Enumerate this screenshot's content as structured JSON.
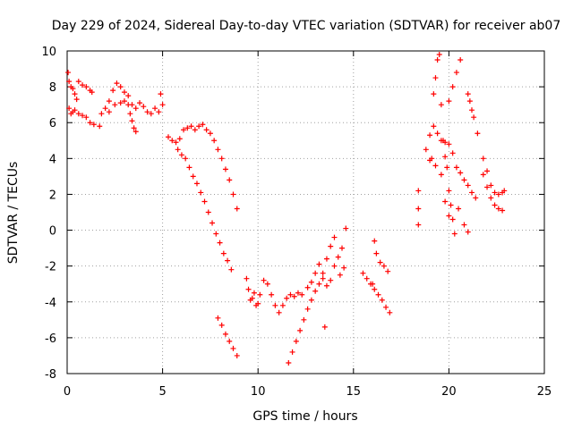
{
  "chart_data": {
    "type": "scatter",
    "title": "Day 229 of 2024, Sidereal Day-to-day VTEC variation (SDTVAR) for receiver ab07",
    "xlabel": "GPS time / hours",
    "ylabel": "SDTVAR / TECUs",
    "xlim": [
      0,
      25
    ],
    "ylim": [
      -8,
      10
    ],
    "xticks": [
      0,
      5,
      10,
      15,
      20,
      25
    ],
    "yticks": [
      -8,
      -6,
      -4,
      -2,
      0,
      2,
      4,
      6,
      8,
      10
    ],
    "grid": true,
    "marker": "+",
    "color": "#ff0000",
    "series": [
      {
        "points": [
          [
            0.05,
            8.8
          ],
          [
            0.1,
            8.3
          ],
          [
            0.2,
            8.0
          ],
          [
            0.3,
            7.9
          ],
          [
            0.4,
            7.6
          ],
          [
            0.5,
            7.3
          ],
          [
            0.1,
            6.8
          ],
          [
            0.2,
            6.5
          ],
          [
            0.3,
            6.6
          ],
          [
            0.4,
            6.7
          ],
          [
            0.6,
            6.5
          ],
          [
            0.8,
            6.4
          ],
          [
            1.0,
            6.3
          ],
          [
            1.2,
            6.0
          ],
          [
            1.4,
            5.9
          ],
          [
            1.7,
            5.8
          ],
          [
            0.6,
            8.3
          ],
          [
            0.8,
            8.1
          ],
          [
            1.0,
            8.0
          ],
          [
            1.2,
            7.8
          ],
          [
            1.3,
            7.7
          ],
          [
            1.8,
            6.5
          ],
          [
            2.0,
            6.8
          ],
          [
            2.2,
            7.2
          ],
          [
            2.4,
            7.8
          ],
          [
            2.6,
            8.2
          ],
          [
            2.8,
            8.0
          ],
          [
            3.0,
            7.7
          ],
          [
            3.2,
            7.0
          ],
          [
            3.3,
            6.5
          ],
          [
            3.4,
            6.1
          ],
          [
            3.5,
            5.7
          ],
          [
            3.6,
            5.5
          ],
          [
            2.2,
            6.6
          ],
          [
            2.5,
            7.0
          ],
          [
            2.8,
            7.1
          ],
          [
            3.0,
            7.2
          ],
          [
            3.2,
            7.5
          ],
          [
            3.4,
            7.0
          ],
          [
            3.6,
            6.8
          ],
          [
            3.8,
            7.1
          ],
          [
            4.0,
            6.9
          ],
          [
            4.2,
            6.6
          ],
          [
            4.4,
            6.5
          ],
          [
            4.6,
            6.8
          ],
          [
            4.8,
            6.6
          ],
          [
            4.9,
            7.6
          ],
          [
            5.0,
            7.0
          ],
          [
            5.3,
            5.2
          ],
          [
            5.5,
            5.0
          ],
          [
            5.7,
            4.9
          ],
          [
            5.9,
            5.1
          ],
          [
            6.1,
            5.6
          ],
          [
            6.3,
            5.7
          ],
          [
            6.5,
            5.8
          ],
          [
            6.7,
            5.6
          ],
          [
            6.9,
            5.8
          ],
          [
            7.1,
            5.9
          ],
          [
            7.3,
            5.6
          ],
          [
            7.5,
            5.4
          ],
          [
            7.7,
            5.0
          ],
          [
            7.9,
            4.5
          ],
          [
            8.1,
            4.0
          ],
          [
            8.3,
            3.4
          ],
          [
            8.5,
            2.8
          ],
          [
            8.7,
            2.0
          ],
          [
            8.9,
            1.2
          ],
          [
            5.8,
            4.5
          ],
          [
            6.0,
            4.2
          ],
          [
            6.2,
            4.0
          ],
          [
            6.4,
            3.5
          ],
          [
            6.6,
            3.0
          ],
          [
            6.8,
            2.6
          ],
          [
            7.0,
            2.1
          ],
          [
            7.2,
            1.6
          ],
          [
            7.4,
            1.0
          ],
          [
            7.6,
            0.4
          ],
          [
            7.8,
            -0.2
          ],
          [
            8.0,
            -0.7
          ],
          [
            8.2,
            -1.3
          ],
          [
            8.4,
            -1.7
          ],
          [
            8.6,
            -2.2
          ],
          [
            7.9,
            -4.9
          ],
          [
            8.1,
            -5.3
          ],
          [
            8.3,
            -5.8
          ],
          [
            8.5,
            -6.2
          ],
          [
            8.7,
            -6.6
          ],
          [
            8.9,
            -7.0
          ],
          [
            9.4,
            -2.7
          ],
          [
            9.5,
            -3.3
          ],
          [
            9.7,
            -3.8
          ],
          [
            9.9,
            -4.2
          ],
          [
            10.1,
            -3.6
          ],
          [
            10.3,
            -2.8
          ],
          [
            10.5,
            -3.0
          ],
          [
            10.7,
            -3.6
          ],
          [
            10.9,
            -4.2
          ],
          [
            11.1,
            -4.6
          ],
          [
            11.3,
            -4.2
          ],
          [
            11.5,
            -3.8
          ],
          [
            11.7,
            -3.6
          ],
          [
            11.9,
            -3.7
          ],
          [
            12.1,
            -3.5
          ],
          [
            12.3,
            -3.6
          ],
          [
            9.6,
            -3.9
          ],
          [
            9.8,
            -3.5
          ],
          [
            10.0,
            -4.1
          ],
          [
            11.6,
            -7.4
          ],
          [
            11.8,
            -6.8
          ],
          [
            12.0,
            -6.2
          ],
          [
            12.2,
            -5.6
          ],
          [
            12.4,
            -5.0
          ],
          [
            12.6,
            -4.4
          ],
          [
            12.8,
            -3.9
          ],
          [
            13.0,
            -3.4
          ],
          [
            13.2,
            -3.0
          ],
          [
            13.4,
            -2.4
          ],
          [
            13.6,
            -1.6
          ],
          [
            13.8,
            -0.9
          ],
          [
            14.0,
            -0.4
          ],
          [
            12.6,
            -3.2
          ],
          [
            12.8,
            -2.9
          ],
          [
            13.0,
            -2.4
          ],
          [
            13.2,
            -1.9
          ],
          [
            13.4,
            -2.7
          ],
          [
            13.6,
            -3.1
          ],
          [
            13.8,
            -2.8
          ],
          [
            14.0,
            -2.0
          ],
          [
            14.2,
            -1.5
          ],
          [
            14.4,
            -1.0
          ],
          [
            14.6,
            0.1
          ],
          [
            13.5,
            -5.4
          ],
          [
            14.5,
            -2.1
          ],
          [
            14.3,
            -2.5
          ],
          [
            15.5,
            -2.4
          ],
          [
            15.7,
            -2.7
          ],
          [
            15.9,
            -3.0
          ],
          [
            16.1,
            -3.3
          ],
          [
            16.3,
            -3.6
          ],
          [
            16.5,
            -3.9
          ],
          [
            16.7,
            -4.3
          ],
          [
            16.9,
            -4.6
          ],
          [
            16.1,
            -0.6
          ],
          [
            16.2,
            -1.3
          ],
          [
            16.4,
            -1.8
          ],
          [
            16.6,
            -2.0
          ],
          [
            16.8,
            -2.3
          ],
          [
            16.0,
            -3.0
          ],
          [
            18.4,
            2.2
          ],
          [
            18.4,
            1.2
          ],
          [
            18.4,
            0.3
          ],
          [
            18.8,
            4.5
          ],
          [
            19.0,
            5.3
          ],
          [
            19.1,
            4.0
          ],
          [
            19.2,
            7.6
          ],
          [
            19.3,
            8.5
          ],
          [
            19.4,
            9.5
          ],
          [
            19.5,
            9.8
          ],
          [
            19.6,
            7.0
          ],
          [
            19.7,
            5.0
          ],
          [
            19.8,
            4.1
          ],
          [
            19.9,
            3.5
          ],
          [
            20.0,
            2.2
          ],
          [
            20.1,
            1.4
          ],
          [
            20.2,
            0.6
          ],
          [
            20.3,
            -0.2
          ],
          [
            19.2,
            5.8
          ],
          [
            19.4,
            5.4
          ],
          [
            19.6,
            5.0
          ],
          [
            19.8,
            4.9
          ],
          [
            20.0,
            4.8
          ],
          [
            20.2,
            4.3
          ],
          [
            20.4,
            3.5
          ],
          [
            20.6,
            3.2
          ],
          [
            20.8,
            2.8
          ],
          [
            21.0,
            2.5
          ],
          [
            21.2,
            2.1
          ],
          [
            21.4,
            1.8
          ],
          [
            19.0,
            3.9
          ],
          [
            19.3,
            3.6
          ],
          [
            19.6,
            3.1
          ],
          [
            19.8,
            1.6
          ],
          [
            20.0,
            0.8
          ],
          [
            20.5,
            1.2
          ],
          [
            20.8,
            0.3
          ],
          [
            21.0,
            -0.1
          ],
          [
            20.0,
            7.2
          ],
          [
            20.2,
            8.0
          ],
          [
            20.4,
            8.8
          ],
          [
            20.6,
            9.5
          ],
          [
            21.0,
            7.6
          ],
          [
            21.1,
            7.2
          ],
          [
            21.2,
            6.7
          ],
          [
            21.3,
            6.3
          ],
          [
            21.5,
            5.4
          ],
          [
            21.8,
            3.1
          ],
          [
            22.0,
            2.4
          ],
          [
            22.2,
            1.8
          ],
          [
            22.4,
            1.4
          ],
          [
            22.6,
            1.2
          ],
          [
            22.8,
            1.1
          ],
          [
            21.8,
            4.0
          ],
          [
            22.0,
            3.3
          ],
          [
            22.2,
            2.5
          ],
          [
            22.4,
            2.1
          ],
          [
            22.6,
            2.0
          ],
          [
            22.8,
            2.1
          ],
          [
            22.9,
            2.2
          ]
        ]
      }
    ]
  }
}
